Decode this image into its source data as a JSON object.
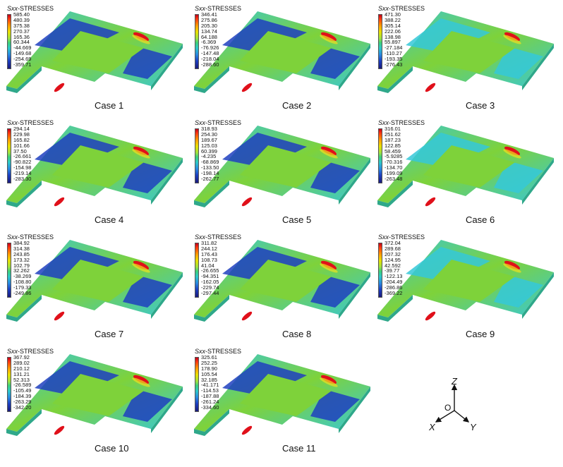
{
  "legend_title_var": "Sxx",
  "legend_title_rest": "-STRESSES",
  "cases": [
    {
      "label": "Case 1",
      "ticks": [
        "585.40",
        "480.39",
        "375.38",
        "270.37",
        "165.36",
        "60.344",
        "-44.669",
        "-149.68",
        "-254.69",
        "-359.71"
      ]
    },
    {
      "label": "Case 2",
      "ticks": [
        "346.41",
        "275.86",
        "205.30",
        "134.74",
        "64.188",
        "-6.369",
        "-76.926",
        "-147.48",
        "-218.04",
        "-288.60"
      ]
    },
    {
      "label": "Case 3",
      "ticks": [
        "471.30",
        "388.22",
        "305.14",
        "222.06",
        "138.98",
        "55.897",
        "-27.184",
        "-110.27",
        "-193.35",
        "-276.43"
      ]
    },
    {
      "label": "Case 4",
      "ticks": [
        "294.14",
        "229.98",
        "165.82",
        "101.66",
        "37.50",
        "-26.661",
        "-90.822",
        "-154.98",
        "-219.14",
        "-283.30"
      ]
    },
    {
      "label": "Case 5",
      "ticks": [
        "318.93",
        "254.30",
        "189.67",
        "125.03",
        "60.399",
        "-4.235",
        "-68.869",
        "-133.50",
        "-198.14",
        "-262.77"
      ]
    },
    {
      "label": "Case 6",
      "ticks": [
        "316.01",
        "251.62",
        "187.23",
        "122.85",
        "58.459",
        "-5.9285",
        "-70.316",
        "-134.70",
        "-199.09",
        "-263.48"
      ]
    },
    {
      "label": "Case 7",
      "ticks": [
        "384.92",
        "314.38",
        "243.85",
        "173.32",
        "102.79",
        "32.262",
        "-38.269",
        "-108.80",
        "-179.33",
        "-249.86"
      ]
    },
    {
      "label": "Case 8",
      "ticks": [
        "311.82",
        "244.12",
        "176.43",
        "108.73",
        "41.04",
        "-26.655",
        "-94.351",
        "-162.05",
        "-229.74",
        "-297.44"
      ]
    },
    {
      "label": "Case 9",
      "ticks": [
        "372.04",
        "289.68",
        "207.32",
        "124.95",
        "42.592",
        "-39.77",
        "-122.13",
        "-204.49",
        "-286.86",
        "-369.22"
      ]
    },
    {
      "label": "Case 10",
      "ticks": [
        "367.92",
        "289.02",
        "210.12",
        "131.21",
        "52.313",
        "-26.589",
        "-105.49",
        "-184.39",
        "-263.29",
        "-342.20"
      ]
    },
    {
      "label": "Case 11",
      "ticks": [
        "325.61",
        "252.25",
        "178.90",
        "105.54",
        "32.185",
        "-41.171",
        "-114.53",
        "-187.88",
        "-261.24",
        "-334.60"
      ]
    }
  ],
  "axes": {
    "z": "Z",
    "x": "X",
    "y": "Y",
    "origin": "O"
  },
  "colors": {
    "green": "#7ed23a",
    "slab_side": "#2fa88a",
    "blue": "#1f3fbf",
    "cyan": "#35c8d8",
    "red": "#e0101a",
    "yellow": "#f0e020"
  }
}
